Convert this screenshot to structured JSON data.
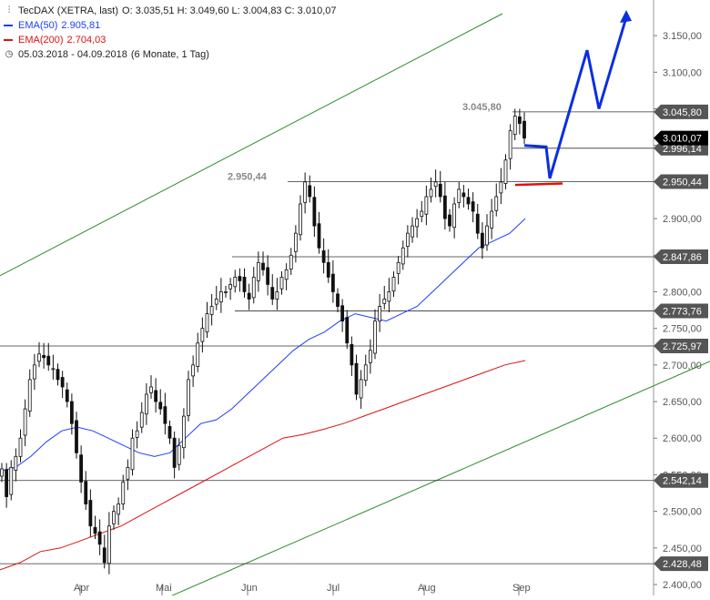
{
  "legend": {
    "title": "TecDAX (XETRA, last)",
    "ohlc": "O: 3.035,51  H: 3.049,60  L: 3.004,83  C: 3.010,07",
    "ema50_label": "EMA(50)",
    "ema50_value": "2.905,81",
    "ema200_label": "EMA(200)",
    "ema200_value": "2.704,03",
    "period": "05.03.2018 - 04.09.2018",
    "period_note": "(6 Monate, 1 Tag)",
    "chart_icon": "candlestick-icon",
    "clock_icon": "clock-icon"
  },
  "colors": {
    "ema50": "#1e3cff",
    "ema200": "#dd1111",
    "channel": "#2e8b2e",
    "forecast": "#0a2ee0",
    "support_marker": "#e01010",
    "price_tag_bg": "#555555",
    "current_tag_bg": "#000000"
  },
  "chart_data": {
    "type": "candlestick",
    "title": "TecDAX (XETRA, last)",
    "ylim": [
      2400,
      3180
    ],
    "x_tick_labels": [
      "Apr",
      "Mai",
      "Jun",
      "Jul",
      "Aug",
      "Sep"
    ],
    "y_tick_labels": [
      "2.400,00",
      "2.450,00",
      "2.500,00",
      "2.550,00",
      "2.600,00",
      "2.650,00",
      "2.700,00",
      "2.750,00",
      "2.800,00",
      "2.850,00",
      "2.900,00",
      "2.950,00",
      "3.000,00",
      "3.050,00",
      "3.100,00",
      "3.150,00"
    ],
    "y_tick_values": [
      2400,
      2450,
      2500,
      2550,
      2600,
      2650,
      2700,
      2750,
      2800,
      2850,
      2900,
      2950,
      3000,
      3050,
      3100,
      3150
    ],
    "horizontal_levels": [
      {
        "value": 3045.8,
        "label": "3.045,80"
      },
      {
        "value": 2996.14,
        "label": "2.996,14"
      },
      {
        "value": 2950.44,
        "label": "2.950,44"
      },
      {
        "value": 2847.86,
        "label": "2.847,86"
      },
      {
        "value": 2773.76,
        "label": "2.773,76"
      },
      {
        "value": 2725.97,
        "label": "2.725,97"
      },
      {
        "value": 2542.14,
        "label": "2.542,14"
      },
      {
        "value": 2428.48,
        "label": "2.428,48"
      }
    ],
    "current_price": {
      "value": 3010.07,
      "label": "3.010,07"
    },
    "annotations": [
      {
        "label": "3.045,80",
        "value": 3045.8
      },
      {
        "label": "2.950,44",
        "value": 2950.44
      }
    ],
    "closes": [
      2558,
      2520,
      2560,
      2575,
      2600,
      2640,
      2680,
      2700,
      2715,
      2710,
      2700,
      2695,
      2680,
      2670,
      2650,
      2620,
      2580,
      2540,
      2510,
      2480,
      2470,
      2455,
      2430,
      2480,
      2500,
      2510,
      2540,
      2560,
      2600,
      2610,
      2635,
      2660,
      2670,
      2650,
      2640,
      2620,
      2600,
      2560,
      2590,
      2630,
      2680,
      2700,
      2730,
      2750,
      2770,
      2780,
      2790,
      2800,
      2800,
      2810,
      2820,
      2815,
      2800,
      2790,
      2820,
      2840,
      2830,
      2810,
      2790,
      2800,
      2820,
      2830,
      2850,
      2880,
      2920,
      2950,
      2930,
      2890,
      2860,
      2840,
      2820,
      2800,
      2780,
      2760,
      2730,
      2700,
      2660,
      2680,
      2700,
      2720,
      2760,
      2780,
      2790,
      2800,
      2820,
      2840,
      2860,
      2880,
      2890,
      2900,
      2910,
      2930,
      2940,
      2950,
      2930,
      2900,
      2890,
      2920,
      2940,
      2930,
      2920,
      2910,
      2880,
      2860,
      2890,
      2910,
      2930,
      2950,
      2980,
      3020,
      3040,
      3030,
      3010
    ],
    "ema50_values": [
      2555,
      2560,
      2575,
      2595,
      2610,
      2615,
      2610,
      2600,
      2590,
      2580,
      2575,
      2580,
      2600,
      2620,
      2625,
      2640,
      2660,
      2680,
      2700,
      2720,
      2735,
      2745,
      2760,
      2770,
      2765,
      2760,
      2770,
      2780,
      2800,
      2820,
      2840,
      2860,
      2870,
      2880,
      2900
    ],
    "ema200_values": [
      2420,
      2430,
      2445,
      2450,
      2460,
      2470,
      2480,
      2495,
      2510,
      2525,
      2540,
      2555,
      2570,
      2585,
      2600,
      2605,
      2612,
      2620,
      2630,
      2640,
      2650,
      2660,
      2670,
      2680,
      2690,
      2700,
      2706
    ],
    "channel_upper": {
      "from": 2822,
      "to": 3180
    },
    "channel_lower": {
      "from": 2380,
      "to": 2705
    }
  }
}
